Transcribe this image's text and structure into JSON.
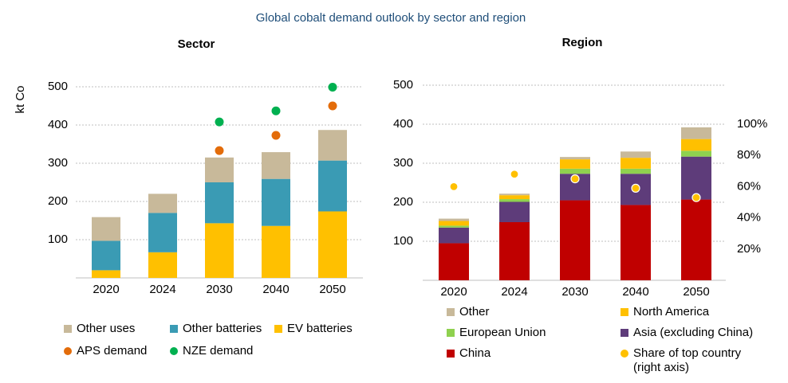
{
  "title": "Global cobalt demand outlook by sector and region",
  "chart_data": [
    {
      "type": "bar",
      "stacked": true,
      "subtitle": "Sector",
      "ylabel": "kt Co",
      "categories": [
        "2020",
        "2024",
        "2030",
        "2040",
        "2050"
      ],
      "ylim": [
        0,
        500
      ],
      "yticks": [
        100,
        200,
        300,
        400,
        500
      ],
      "grid": true,
      "series": [
        {
          "name": "Other uses",
          "color": "#c8b99a",
          "values": [
            62,
            50,
            65,
            70,
            80
          ]
        },
        {
          "name": "Other batteries",
          "color": "#3a9bb4",
          "values": [
            77,
            103,
            107,
            123,
            133
          ]
        },
        {
          "name": "EV batteries",
          "color": "#ffc000",
          "values": [
            20,
            67,
            143,
            136,
            174
          ]
        },
        {
          "name": "APS demand",
          "type": "scatter",
          "color": "#e36c0a",
          "values": [
            null,
            null,
            333,
            373,
            450
          ]
        },
        {
          "name": "NZE demand",
          "type": "scatter",
          "color": "#00b050",
          "values": [
            null,
            null,
            408,
            437,
            499
          ]
        }
      ]
    },
    {
      "type": "bar",
      "stacked": true,
      "subtitle": "Region",
      "categories": [
        "2020",
        "2024",
        "2030",
        "2040",
        "2050"
      ],
      "ylim": [
        0,
        500
      ],
      "yticks": [
        100,
        200,
        300,
        400,
        500
      ],
      "grid": true,
      "y2lim": [
        0,
        125
      ],
      "y2ticks": [
        {
          "value": 20,
          "label": "20%"
        },
        {
          "value": 40,
          "label": "40%"
        },
        {
          "value": 60,
          "label": "60%"
        },
        {
          "value": 80,
          "label": "80%"
        },
        {
          "value": 100,
          "label": "100%"
        }
      ],
      "series": [
        {
          "name": "Other",
          "color": "#c8b99a",
          "values": [
            6,
            4,
            6,
            16,
            30
          ]
        },
        {
          "name": "North America",
          "color": "#ffc000",
          "values": [
            12,
            10,
            24,
            28,
            30
          ]
        },
        {
          "name": "European Union",
          "color": "#8fd14f",
          "values": [
            5,
            7,
            13,
            13,
            15
          ]
        },
        {
          "name": "Asia (excluding China)",
          "color": "#5e3c7a",
          "values": [
            40,
            52,
            68,
            80,
            110
          ]
        },
        {
          "name": "China",
          "color": "#c00000",
          "values": [
            95,
            149,
            205,
            193,
            207
          ]
        },
        {
          "name": "Share of top country (right axis)",
          "type": "scatter",
          "axis": "y2",
          "color": "#ffc000",
          "values": [
            60,
            68,
            65,
            59,
            53
          ]
        }
      ]
    }
  ]
}
